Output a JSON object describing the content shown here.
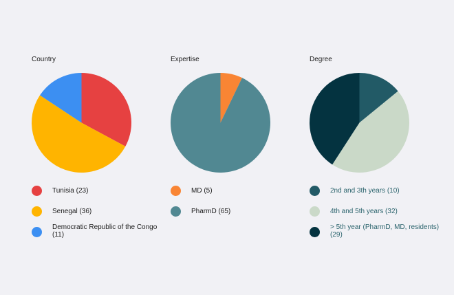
{
  "chart_data": [
    {
      "type": "pie",
      "title": "Country",
      "categories": [
        "Tunisia",
        "Senegal",
        "Democratic Republic of the Congo"
      ],
      "values": [
        23,
        36,
        11
      ],
      "legend_labels": [
        "Tunisia (23)",
        "Senegal (36)",
        "Democratic Republic of the Congo (11)"
      ],
      "colors": [
        "#e64141",
        "#ffb400",
        "#3c8ff2"
      ],
      "label_color": "#1c1c1c",
      "legend": "bottom"
    },
    {
      "type": "pie",
      "title": "Expertise",
      "categories": [
        "MD",
        "PharmD"
      ],
      "values": [
        5,
        65
      ],
      "legend_labels": [
        "MD (5)",
        "PharmD (65)"
      ],
      "colors": [
        "#f98534",
        "#518892"
      ],
      "label_color": "#1c1c1c",
      "legend": "bottom"
    },
    {
      "type": "pie",
      "title": "Degree",
      "categories": [
        "2nd and 3th years",
        "4th and 5th years",
        "> 5th year (PharmD, MD, residents)"
      ],
      "values": [
        10,
        32,
        29
      ],
      "legend_labels": [
        "2nd and 3th years (10)",
        "4th and 5th years (32)",
        "> 5th year (PharmD, MD, residents) (29)"
      ],
      "colors": [
        "#225a66",
        "#cad9c8",
        "#043340"
      ],
      "label_color": "#2a636c",
      "legend": "bottom"
    }
  ]
}
